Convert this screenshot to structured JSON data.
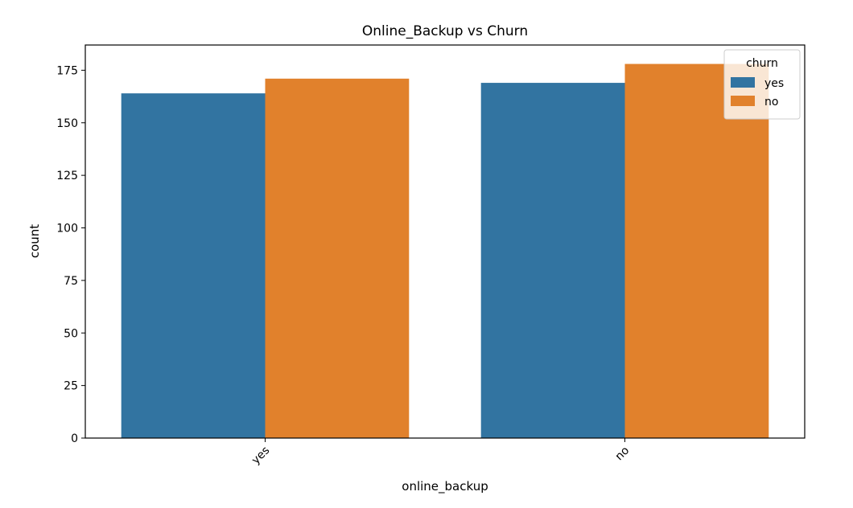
{
  "chart_data": {
    "type": "bar",
    "title": "Online_Backup vs Churn",
    "xlabel": "online_backup",
    "ylabel": "count",
    "categories": [
      "yes",
      "no"
    ],
    "series": [
      {
        "name": "yes",
        "values": [
          164,
          169
        ],
        "color": "#3274a1"
      },
      {
        "name": "no",
        "values": [
          171,
          178
        ],
        "color": "#e1812c"
      }
    ],
    "ylim": [
      0,
      187
    ],
    "yticks": [
      0,
      25,
      50,
      75,
      100,
      125,
      150,
      175
    ],
    "grid": false,
    "legend": {
      "title": "churn",
      "placement": "top-right"
    },
    "xtick_rotation": "45 degrees"
  }
}
